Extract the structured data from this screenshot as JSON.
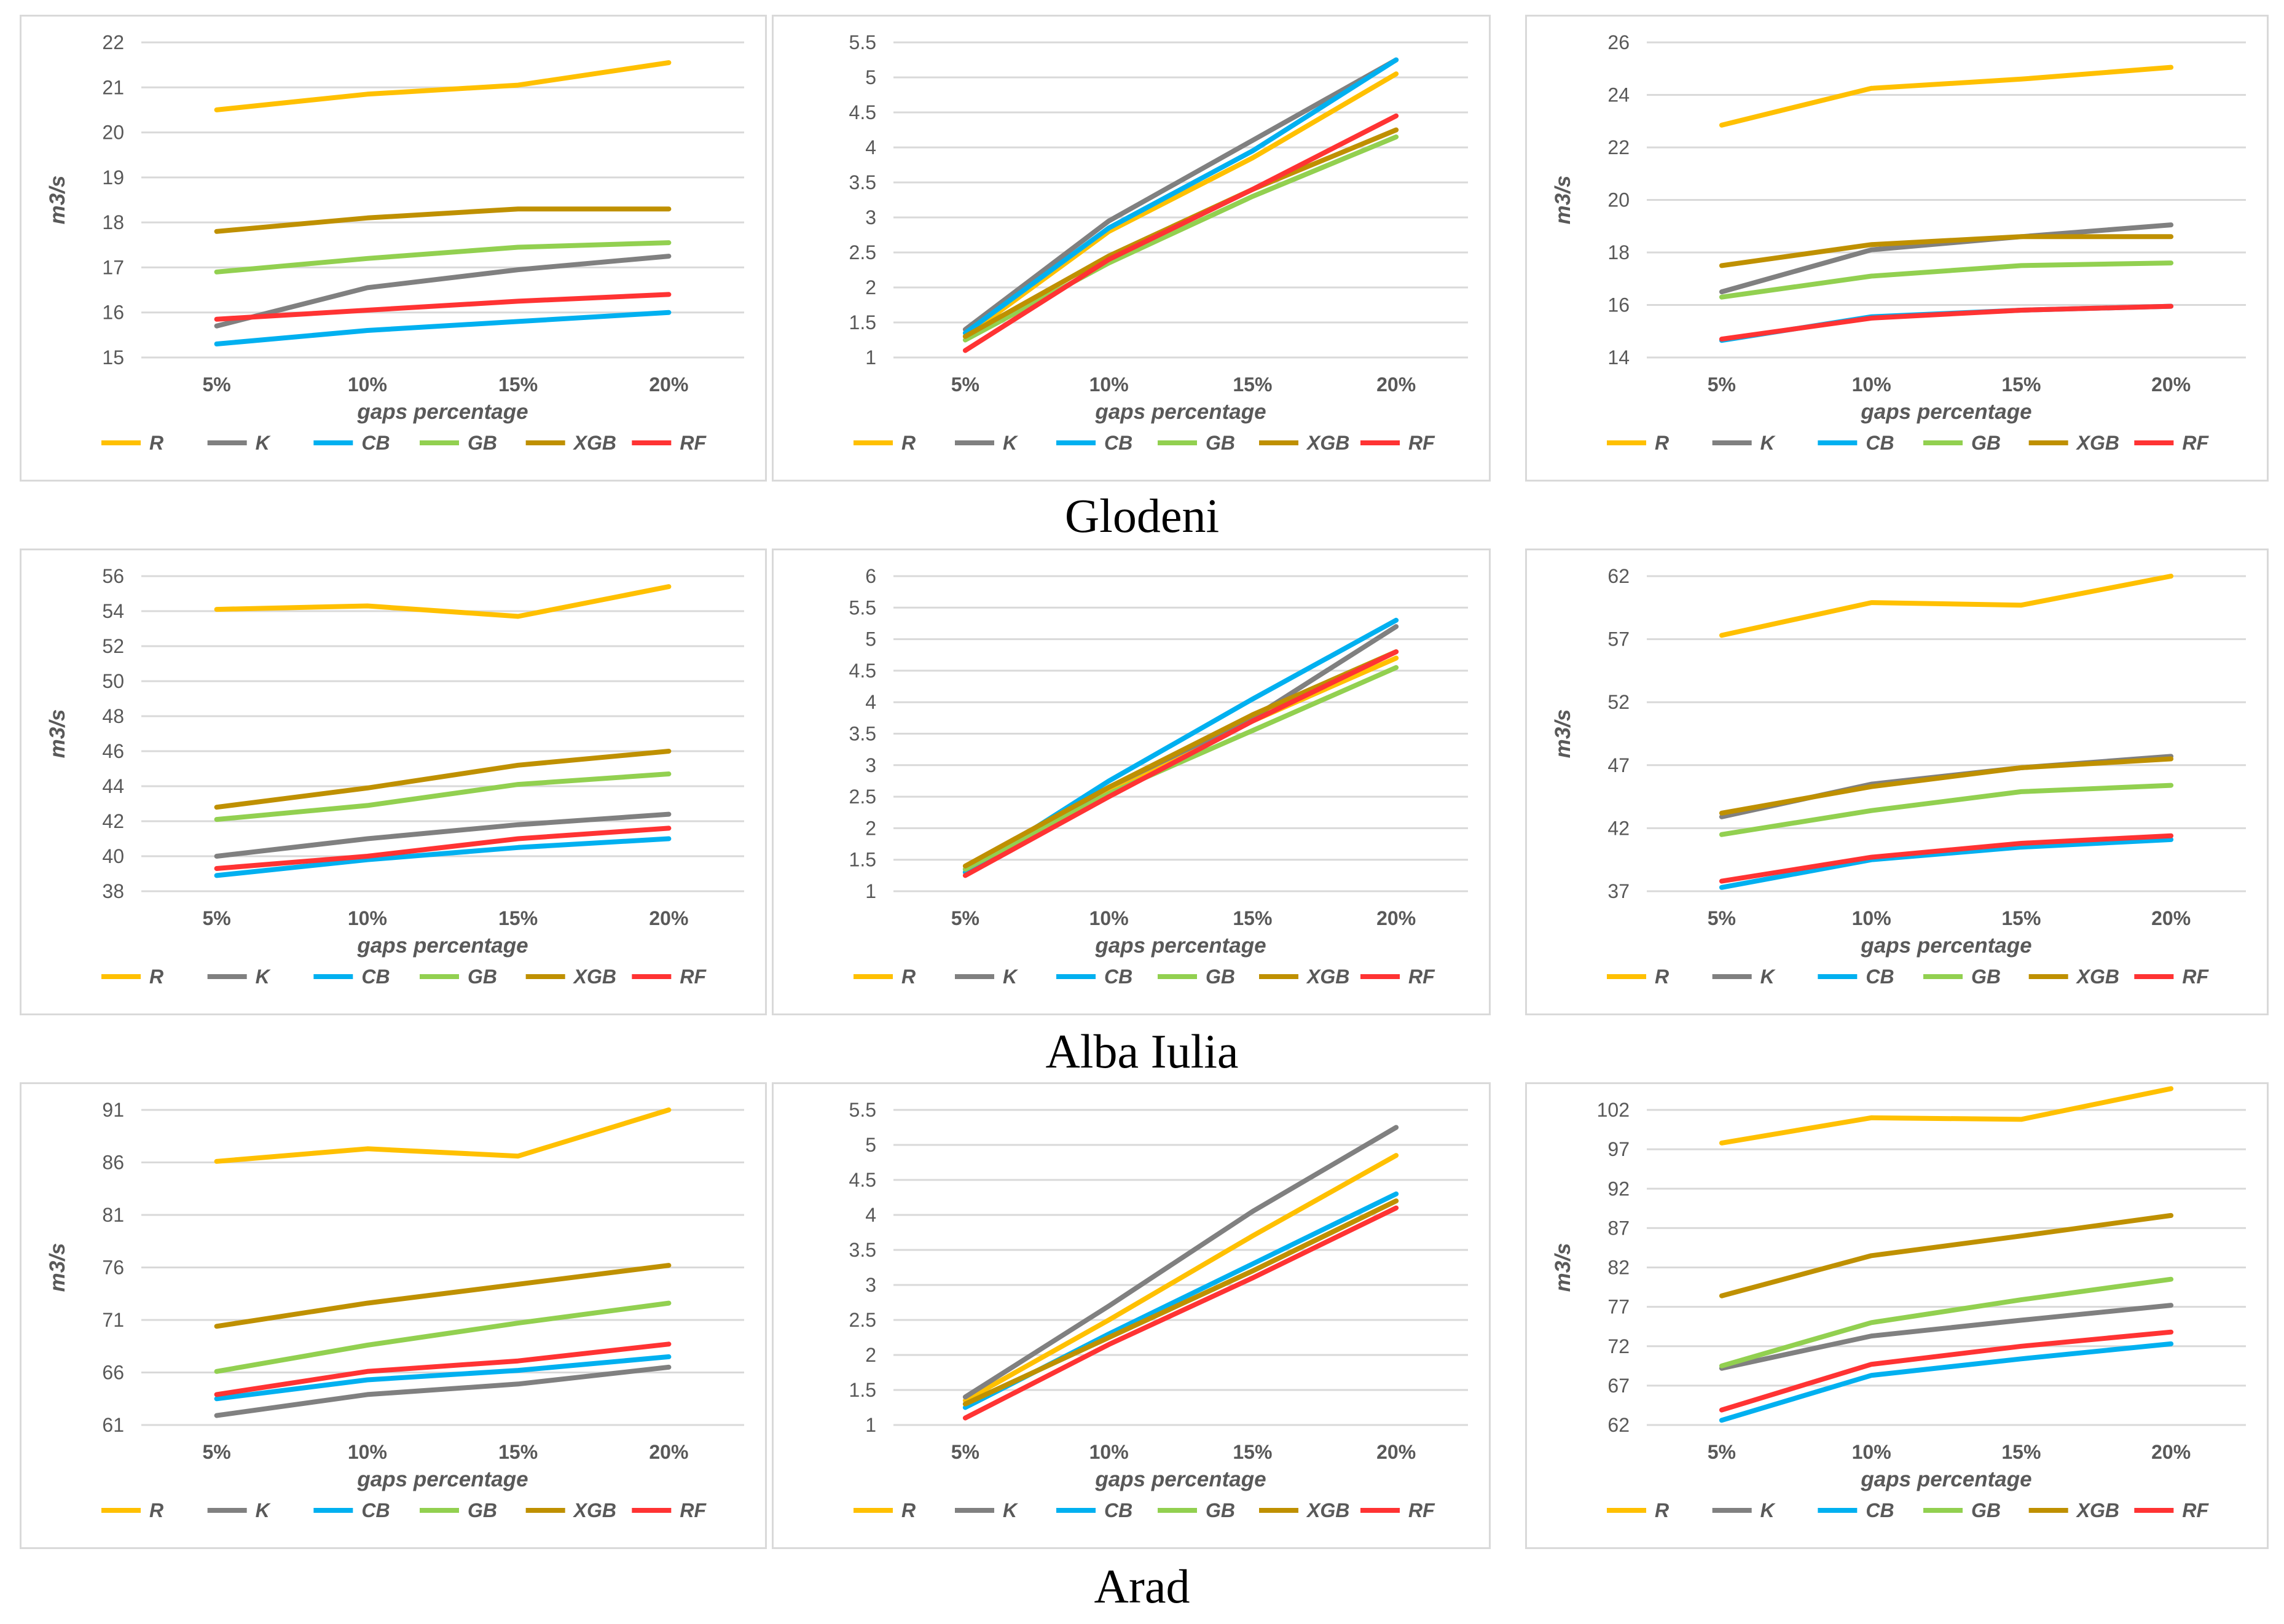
{
  "colors": {
    "R": "#FFC000",
    "K": "#808080",
    "CB": "#00B0F0",
    "GB": "#92D050",
    "XGB": "#BF9000",
    "RF": "#FF3333"
  },
  "x_categories": [
    "5%",
    "10%",
    "15%",
    "20%"
  ],
  "xlabel": "gaps percentage",
  "stations": [
    {
      "name": "Glodeni",
      "charts": [
        {
          "type": "line",
          "ylabel": "m3/s",
          "ylim": [
            15,
            22
          ],
          "yticks": [
            "15",
            "16",
            "17",
            "18",
            "19",
            "20",
            "21",
            "22"
          ],
          "series": [
            {
              "name": "R",
              "values": [
                20.5,
                20.85,
                21.05,
                21.55
              ]
            },
            {
              "name": "K",
              "values": [
                15.7,
                16.55,
                16.95,
                17.25
              ]
            },
            {
              "name": "CB",
              "values": [
                15.3,
                15.6,
                15.8,
                16.0
              ]
            },
            {
              "name": "GB",
              "values": [
                16.9,
                17.2,
                17.45,
                17.55
              ]
            },
            {
              "name": "XGB",
              "values": [
                17.8,
                18.1,
                18.3,
                18.3
              ]
            },
            {
              "name": "RF",
              "values": [
                15.85,
                16.05,
                16.25,
                16.4
              ]
            }
          ]
        },
        {
          "type": "line",
          "ylabel": "",
          "ylim": [
            1,
            5.5
          ],
          "yticks": [
            "1",
            "1.5",
            "2",
            "2.5",
            "3",
            "3.5",
            "4",
            "4.5",
            "5",
            "5.5"
          ],
          "series": [
            {
              "name": "R",
              "values": [
                1.3,
                2.8,
                3.85,
                5.05
              ]
            },
            {
              "name": "K",
              "values": [
                1.4,
                2.95,
                4.1,
                5.25
              ]
            },
            {
              "name": "CB",
              "values": [
                1.35,
                2.85,
                3.95,
                5.25
              ]
            },
            {
              "name": "GB",
              "values": [
                1.25,
                2.35,
                3.3,
                4.15
              ]
            },
            {
              "name": "XGB",
              "values": [
                1.3,
                2.45,
                3.4,
                4.25
              ]
            },
            {
              "name": "RF",
              "values": [
                1.1,
                2.4,
                3.4,
                4.45
              ]
            }
          ]
        },
        {
          "type": "line",
          "ylabel": "m3/s",
          "ylim": [
            14,
            26
          ],
          "yticks": [
            "14",
            "16",
            "18",
            "20",
            "22",
            "24",
            "26"
          ],
          "series": [
            {
              "name": "R",
              "values": [
                22.85,
                24.25,
                24.6,
                25.05
              ]
            },
            {
              "name": "K",
              "values": [
                16.5,
                18.1,
                18.6,
                19.05
              ]
            },
            {
              "name": "CB",
              "values": [
                14.65,
                15.55,
                15.8,
                15.95
              ]
            },
            {
              "name": "GB",
              "values": [
                16.3,
                17.1,
                17.5,
                17.6
              ]
            },
            {
              "name": "XGB",
              "values": [
                17.5,
                18.3,
                18.6,
                18.6
              ]
            },
            {
              "name": "RF",
              "values": [
                14.7,
                15.5,
                15.8,
                15.95
              ]
            }
          ]
        }
      ]
    },
    {
      "name": "Alba Iulia",
      "charts": [
        {
          "type": "line",
          "ylabel": "m3/s",
          "ylim": [
            38,
            56
          ],
          "yticks": [
            "38",
            "40",
            "42",
            "44",
            "46",
            "48",
            "50",
            "52",
            "54",
            "56"
          ],
          "series": [
            {
              "name": "R",
              "values": [
                54.1,
                54.3,
                53.7,
                55.4
              ]
            },
            {
              "name": "K",
              "values": [
                40.0,
                41.0,
                41.8,
                42.4
              ]
            },
            {
              "name": "CB",
              "values": [
                38.9,
                39.8,
                40.5,
                41.0
              ]
            },
            {
              "name": "GB",
              "values": [
                42.1,
                42.9,
                44.1,
                44.7
              ]
            },
            {
              "name": "XGB",
              "values": [
                42.8,
                43.9,
                45.2,
                46.0
              ]
            },
            {
              "name": "RF",
              "values": [
                39.3,
                40.0,
                41.0,
                41.6
              ]
            }
          ]
        },
        {
          "type": "line",
          "ylabel": "",
          "ylim": [
            1,
            6
          ],
          "yticks": [
            "1",
            "1.5",
            "2",
            "2.5",
            "3",
            "3.5",
            "4",
            "4.5",
            "5",
            "5.5",
            "6"
          ],
          "series": [
            {
              "name": "R",
              "values": [
                1.3,
                2.6,
                3.7,
                4.7
              ]
            },
            {
              "name": "K",
              "values": [
                1.35,
                2.65,
                3.75,
                5.2
              ]
            },
            {
              "name": "CB",
              "values": [
                1.3,
                2.75,
                4.05,
                5.3
              ]
            },
            {
              "name": "GB",
              "values": [
                1.35,
                2.55,
                3.55,
                4.55
              ]
            },
            {
              "name": "XGB",
              "values": [
                1.4,
                2.65,
                3.8,
                4.8
              ]
            },
            {
              "name": "RF",
              "values": [
                1.25,
                2.5,
                3.7,
                4.8
              ]
            }
          ]
        },
        {
          "type": "line",
          "ylabel": "m3/s",
          "ylim": [
            37,
            62
          ],
          "yticks": [
            "37",
            "42",
            "47",
            "52",
            "57",
            "62"
          ],
          "series": [
            {
              "name": "R",
              "values": [
                57.3,
                59.9,
                59.7,
                62.0
              ]
            },
            {
              "name": "K",
              "values": [
                42.9,
                45.5,
                46.8,
                47.7
              ]
            },
            {
              "name": "CB",
              "values": [
                37.3,
                39.5,
                40.5,
                41.1
              ]
            },
            {
              "name": "GB",
              "values": [
                41.5,
                43.4,
                44.9,
                45.4
              ]
            },
            {
              "name": "XGB",
              "values": [
                43.2,
                45.3,
                46.8,
                47.5
              ]
            },
            {
              "name": "RF",
              "values": [
                37.8,
                39.7,
                40.8,
                41.4
              ]
            }
          ]
        }
      ]
    },
    {
      "name": "Arad",
      "charts": [
        {
          "type": "line",
          "ylabel": "m3/s",
          "ylim": [
            61,
            91
          ],
          "yticks": [
            "61",
            "66",
            "71",
            "76",
            "81",
            "86",
            "91"
          ],
          "series": [
            {
              "name": "R",
              "values": [
                86.1,
                87.3,
                86.6,
                91.0
              ]
            },
            {
              "name": "K",
              "values": [
                61.9,
                63.9,
                64.9,
                66.5
              ]
            },
            {
              "name": "CB",
              "values": [
                63.5,
                65.3,
                66.2,
                67.5
              ]
            },
            {
              "name": "GB",
              "values": [
                66.1,
                68.6,
                70.7,
                72.6
              ]
            },
            {
              "name": "XGB",
              "values": [
                70.4,
                72.6,
                74.4,
                76.2
              ]
            },
            {
              "name": "RF",
              "values": [
                63.9,
                66.1,
                67.1,
                68.7
              ]
            }
          ]
        },
        {
          "type": "line",
          "ylabel": "",
          "ylim": [
            1,
            5.5
          ],
          "yticks": [
            "1",
            "1.5",
            "2",
            "2.5",
            "3",
            "3.5",
            "4",
            "4.5",
            "5",
            "5.5"
          ],
          "series": [
            {
              "name": "R",
              "values": [
                1.35,
                2.5,
                3.7,
                4.85
              ]
            },
            {
              "name": "K",
              "values": [
                1.4,
                2.7,
                4.05,
                5.25
              ]
            },
            {
              "name": "CB",
              "values": [
                1.25,
                2.3,
                3.3,
                4.3
              ]
            },
            {
              "name": "GB",
              "values": [
                1.3,
                2.25,
                3.2,
                4.2
              ]
            },
            {
              "name": "XGB",
              "values": [
                1.3,
                2.25,
                3.2,
                4.2
              ]
            },
            {
              "name": "RF",
              "values": [
                1.1,
                2.15,
                3.1,
                4.1
              ]
            }
          ]
        },
        {
          "type": "line",
          "ylabel": "m3/s",
          "ylim": [
            62,
            102
          ],
          "yticks": [
            "62",
            "67",
            "72",
            "77",
            "82",
            "87",
            "92",
            "97",
            "102"
          ],
          "series": [
            {
              "name": "R",
              "values": [
                97.8,
                101.0,
                100.8,
                104.7
              ]
            },
            {
              "name": "K",
              "values": [
                69.2,
                73.3,
                75.3,
                77.2
              ]
            },
            {
              "name": "CB",
              "values": [
                62.6,
                68.3,
                70.4,
                72.3
              ]
            },
            {
              "name": "GB",
              "values": [
                69.5,
                75.0,
                77.9,
                80.5
              ]
            },
            {
              "name": "XGB",
              "values": [
                78.4,
                83.5,
                86.0,
                88.6
              ]
            },
            {
              "name": "RF",
              "values": [
                63.9,
                69.7,
                72.0,
                73.8
              ]
            }
          ]
        }
      ]
    }
  ]
}
